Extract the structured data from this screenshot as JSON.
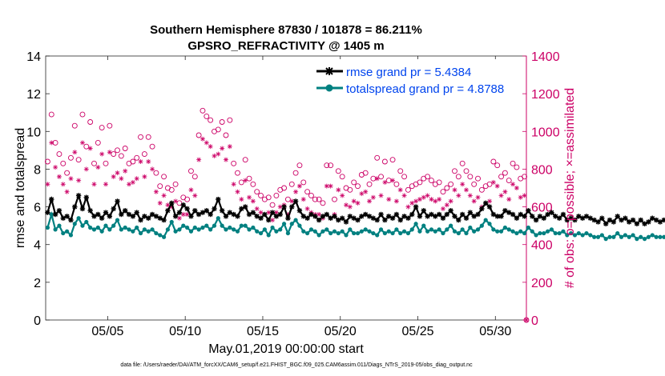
{
  "chart_data": {
    "type": "line",
    "title_line1": "Southern Hemisphere 87830 / 101878 = 86.211%",
    "title_line2": "GPSRO_REFRACTIVITY @ 1405 m",
    "xlabel": "May.01,2019 00:00:00 start",
    "ylabel_left": "rmse and totalspread",
    "ylabel_right": "# of obs: o=possible; ×=assimilated",
    "footnote": "data file: /Users/raeder/DAI/ATM_forcXX/CAM6_setup/f.e21.FHIST_BGC.f09_025.CAM6assim.011/Diags_NTrS_2019-05/obs_diag_output.nc",
    "x_range": [
      1,
      32
    ],
    "y_left_range": [
      0,
      14
    ],
    "y_right_range": [
      0,
      1400
    ],
    "x_ticks": [
      5,
      10,
      15,
      20,
      25,
      30
    ],
    "x_tick_labels": [
      "05/05",
      "05/10",
      "05/15",
      "05/20",
      "05/25",
      "05/30"
    ],
    "y_left_ticks": [
      "0",
      "2",
      "4",
      "6",
      "8",
      "10",
      "12",
      "14"
    ],
    "y_right_ticks": [
      "0",
      "200",
      "400",
      "600",
      "800",
      "1000",
      "1200",
      "1400"
    ],
    "grid": false,
    "legend_position": "top-right",
    "x_step_days": 0.25,
    "series": [
      {
        "name": "rmse grand pr = 5.4384",
        "axis": "left",
        "color": "#000000",
        "values": [
          5.7,
          6.4,
          5.6,
          5.8,
          5.4,
          5.5,
          5.3,
          6.0,
          6.6,
          5.9,
          6.5,
          5.8,
          5.5,
          5.6,
          5.4,
          5.7,
          5.5,
          5.9,
          6.3,
          5.6,
          5.8,
          5.6,
          5.5,
          5.7,
          5.3,
          5.5,
          5.4,
          5.6,
          5.5,
          5.4,
          5.3,
          5.8,
          6.2,
          5.5,
          5.7,
          6.1,
          5.9,
          5.5,
          5.8,
          5.6,
          5.7,
          5.8,
          5.6,
          5.9,
          6.4,
          5.8,
          5.5,
          5.7,
          5.6,
          5.5,
          5.9,
          6.0,
          5.6,
          5.7,
          5.5,
          5.4,
          5.6,
          5.3,
          5.7,
          5.5,
          5.6,
          6.0,
          5.4,
          6.0,
          6.3,
          5.8,
          5.5,
          5.4,
          5.6,
          5.5,
          5.3,
          5.5,
          5.6,
          5.4,
          5.5,
          5.3,
          5.4,
          5.2,
          5.5,
          5.4,
          5.3,
          5.5,
          5.6,
          5.5,
          5.4,
          5.3,
          5.6,
          5.3,
          5.5,
          5.4,
          5.6,
          5.3,
          5.5,
          5.4,
          5.6,
          6.0,
          5.5,
          5.8,
          5.5,
          5.6,
          5.5,
          5.6,
          5.4,
          5.6,
          5.8,
          5.5,
          5.3,
          5.6,
          5.4,
          5.7,
          5.5,
          5.6,
          5.9,
          6.2,
          6.0,
          5.6,
          5.5,
          5.5,
          5.8,
          5.7,
          5.6,
          5.4,
          5.6,
          5.5,
          5.8,
          5.5,
          5.3,
          5.5,
          5.4,
          5.6,
          5.7,
          5.5,
          5.4,
          5.6,
          5.3,
          5.4,
          5.3,
          5.5,
          5.4,
          5.5,
          5.4,
          5.3,
          5.2,
          5.4,
          5.1,
          5.3,
          5.2,
          5.5,
          5.3,
          5.4,
          5.2,
          5.3,
          5.1,
          5.3,
          5.1,
          5.2,
          5.4,
          5.3,
          5.2,
          5.3,
          5.4,
          5.3,
          5.5,
          5.6,
          5.3,
          5.5,
          5.8,
          5.5,
          5.7,
          5.5,
          5.6,
          5.4,
          5.6,
          5.5,
          5.3,
          5.4,
          5.5,
          5.3,
          5.4,
          5.2,
          5.5,
          5.3,
          5.6,
          5.4,
          5.3,
          5.5,
          5.4,
          5.2,
          5.3,
          5.1,
          5.3,
          4.9,
          5.0,
          5.2,
          5.1,
          4.6,
          5.1,
          5.3,
          5.4,
          5.3,
          5.5,
          5.4
        ]
      },
      {
        "name": "totalspread grand pr = 4.8788",
        "axis": "left",
        "color": "#008080",
        "values": [
          4.9,
          5.6,
          4.8,
          5.0,
          4.6,
          4.7,
          4.5,
          5.1,
          5.4,
          5.0,
          5.2,
          4.9,
          4.8,
          4.9,
          4.7,
          5.0,
          4.8,
          5.0,
          5.3,
          4.8,
          4.9,
          4.8,
          4.7,
          4.9,
          4.6,
          4.8,
          4.7,
          4.8,
          4.6,
          4.5,
          4.4,
          4.8,
          5.2,
          4.7,
          4.8,
          5.0,
          4.9,
          4.7,
          4.9,
          4.8,
          4.9,
          5.0,
          4.8,
          5.0,
          5.4,
          5.0,
          4.8,
          4.9,
          4.8,
          4.7,
          5.0,
          5.0,
          4.8,
          4.9,
          4.7,
          4.6,
          4.8,
          4.5,
          4.9,
          4.7,
          4.8,
          5.1,
          4.6,
          5.1,
          5.3,
          5.0,
          4.7,
          4.6,
          4.8,
          4.7,
          4.5,
          4.7,
          4.8,
          4.6,
          4.7,
          4.6,
          4.7,
          4.5,
          4.8,
          4.6,
          4.6,
          4.7,
          4.8,
          4.7,
          4.6,
          4.5,
          4.8,
          4.6,
          4.7,
          4.6,
          4.8,
          4.6,
          4.7,
          4.6,
          4.8,
          5.1,
          4.7,
          5.0,
          4.7,
          4.8,
          4.7,
          4.8,
          4.6,
          4.8,
          5.0,
          4.7,
          4.6,
          4.8,
          4.6,
          4.9,
          4.7,
          4.8,
          5.0,
          5.3,
          5.1,
          4.8,
          4.7,
          4.7,
          4.9,
          4.8,
          4.7,
          4.6,
          4.7,
          4.6,
          4.9,
          4.7,
          4.5,
          4.6,
          4.6,
          4.7,
          4.8,
          4.6,
          4.6,
          4.7,
          4.5,
          4.6,
          4.5,
          4.6,
          4.5,
          4.6,
          4.5,
          4.4,
          4.4,
          4.5,
          4.3,
          4.4,
          4.4,
          4.6,
          4.4,
          4.5,
          4.4,
          4.5,
          4.3,
          4.4,
          4.3,
          4.4,
          4.5,
          4.4,
          4.4,
          4.4,
          4.5,
          4.4,
          4.6,
          4.7,
          4.5,
          4.6,
          4.8,
          4.6,
          4.8,
          4.6,
          4.7,
          4.5,
          4.7,
          4.6,
          4.5,
          4.5,
          4.6,
          4.5,
          4.5,
          4.4,
          4.6,
          4.5,
          4.7,
          4.5,
          4.4,
          4.6,
          4.5,
          4.4,
          4.4,
          4.3,
          4.4,
          4.1,
          4.2,
          4.4,
          4.3,
          3.9,
          4.3,
          4.4,
          4.5,
          4.4,
          4.6,
          4.5
        ]
      },
      {
        "name": "possible",
        "axis": "right",
        "color": "#cc0066",
        "marker": "circle",
        "values": [
          840,
          1090,
          940,
          880,
          830,
          780,
          860,
          1030,
          850,
          1090,
          920,
          1050,
          830,
          940,
          1020,
          830,
          1030,
          880,
          900,
          870,
          910,
          830,
          840,
          860,
          970,
          880,
          970,
          920,
          780,
          710,
          760,
          700,
          690,
          720,
          620,
          650,
          640,
          790,
          760,
          980,
          1110,
          1080,
          1060,
          1000,
          1010,
          1050,
          980,
          1060,
          830,
          780,
          730,
          850,
          750,
          720,
          680,
          660,
          640,
          650,
          610,
          660,
          690,
          700,
          640,
          720,
          780,
          820,
          730,
          680,
          660,
          640,
          640,
          620,
          820,
          820,
          640,
          790,
          760,
          700,
          690,
          730,
          710,
          770,
          780,
          720,
          750,
          860,
          760,
          840,
          740,
          850,
          720,
          790,
          760,
          690,
          710,
          720,
          730,
          750,
          760,
          740,
          720,
          730,
          680,
          700,
          720,
          790,
          760,
          830,
          790,
          760,
          720,
          750,
          690,
          710,
          720,
          840,
          820,
          760,
          780,
          740,
          830,
          810,
          750,
          760,
          720,
          690,
          780,
          760,
          790,
          720,
          750,
          660,
          750,
          720,
          800,
          830,
          770,
          760,
          780,
          730,
          710,
          700,
          750,
          740,
          720,
          770,
          790,
          740,
          800,
          760,
          700,
          750,
          720,
          740,
          790,
          760,
          740,
          800,
          820,
          790,
          810,
          780,
          850,
          870,
          830,
          820,
          800,
          760,
          780,
          740,
          820,
          780,
          740,
          760,
          800,
          790,
          760,
          720,
          800,
          860,
          760,
          790,
          710,
          780,
          760,
          730,
          760,
          830,
          790,
          850,
          900,
          830,
          860,
          840,
          780,
          750,
          720,
          760,
          790,
          0
        ]
      },
      {
        "name": "assimilated",
        "axis": "right",
        "color": "#cc0066",
        "marker": "star",
        "values": [
          720,
          940,
          810,
          760,
          720,
          680,
          750,
          890,
          740,
          940,
          800,
          910,
          720,
          810,
          880,
          720,
          890,
          760,
          780,
          750,
          790,
          720,
          730,
          750,
          840,
          760,
          840,
          800,
          680,
          620,
          660,
          610,
          600,
          630,
          540,
          560,
          560,
          690,
          660,
          850,
          960,
          940,
          920,
          870,
          880,
          910,
          850,
          920,
          720,
          680,
          640,
          740,
          650,
          630,
          590,
          570,
          560,
          570,
          530,
          570,
          600,
          610,
          560,
          630,
          680,
          710,
          640,
          590,
          570,
          560,
          560,
          540,
          710,
          710,
          560,
          690,
          660,
          610,
          600,
          630,
          620,
          670,
          680,
          630,
          650,
          750,
          660,
          730,
          640,
          740,
          630,
          690,
          660,
          600,
          620,
          630,
          640,
          650,
          660,
          640,
          630,
          640,
          590,
          610,
          630,
          690,
          660,
          720,
          690,
          660,
          630,
          650,
          600,
          620,
          630,
          730,
          710,
          660,
          680,
          640,
          720,
          700,
          650,
          660,
          630,
          600,
          680,
          660,
          690,
          630,
          650,
          570,
          650,
          630,
          700,
          720,
          670,
          660,
          680,
          640,
          620,
          610,
          650,
          640,
          630,
          670,
          690,
          640,
          700,
          660,
          610,
          650,
          630,
          640,
          690,
          660,
          640,
          700,
          710,
          690,
          700,
          680,
          740,
          760,
          720,
          710,
          700,
          660,
          680,
          640,
          710,
          680,
          640,
          660,
          700,
          690,
          660,
          630,
          700,
          750,
          660,
          690,
          620,
          680,
          660,
          640,
          660,
          720,
          690,
          740,
          780,
          720,
          750,
          730,
          680,
          650,
          630,
          660,
          690,
          0
        ]
      }
    ]
  }
}
